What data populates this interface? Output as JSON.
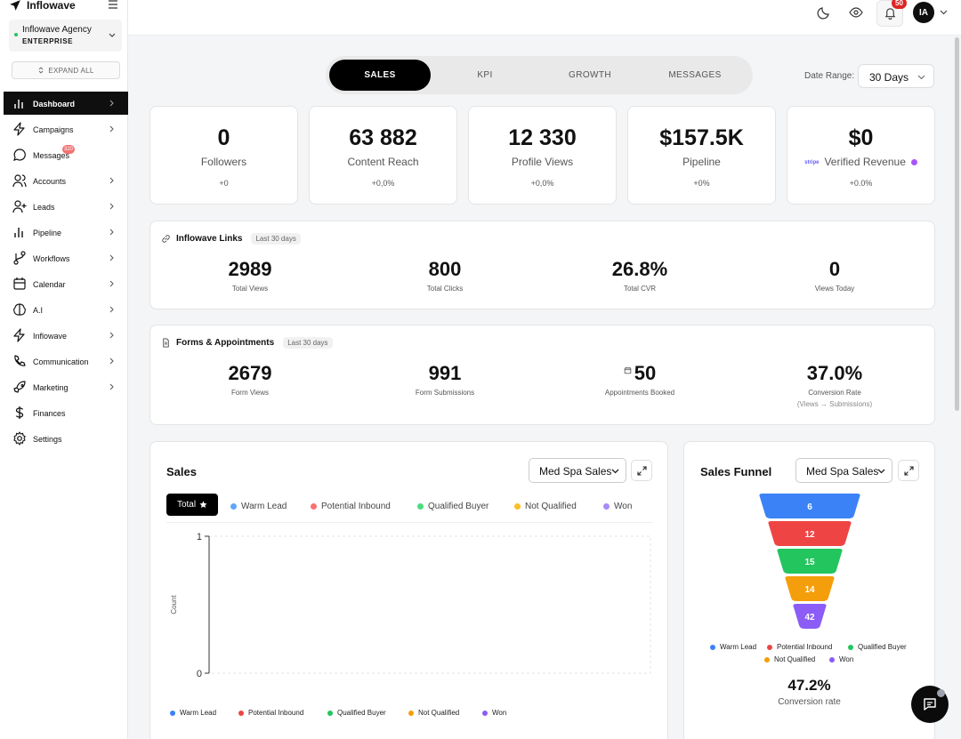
{
  "app": {
    "brand": "Inflowave"
  },
  "agency": {
    "name": "Inflowave Agency",
    "tier": "ENTERPRISE"
  },
  "sidebar": {
    "expand_all": "EXPAND ALL",
    "items": [
      {
        "label": "Dashboard",
        "icon": "bar-chart-icon",
        "active": true
      },
      {
        "label": "Campaigns",
        "icon": "lightning-icon"
      },
      {
        "label": "Messages",
        "icon": "message-circle-icon",
        "badge": "320"
      },
      {
        "label": "Accounts",
        "icon": "users-icon"
      },
      {
        "label": "Leads",
        "icon": "user-plus-icon"
      },
      {
        "label": "Pipeline",
        "icon": "bar-chart-icon"
      },
      {
        "label": "Workflows",
        "icon": "git-branch-icon"
      },
      {
        "label": "Calendar",
        "icon": "calendar-icon"
      },
      {
        "label": "A.I",
        "icon": "brain-icon"
      },
      {
        "label": "Inflowave",
        "icon": "lightning-icon"
      },
      {
        "label": "Communication",
        "icon": "phone-icon"
      },
      {
        "label": "Marketing",
        "icon": "rocket-icon"
      },
      {
        "label": "Finances",
        "icon": "dollar-icon"
      },
      {
        "label": "Settings",
        "icon": "gear-icon"
      }
    ]
  },
  "topbar": {
    "notifications": "50",
    "avatar_initials": "IA"
  },
  "tabs": [
    "SALES",
    "KPI",
    "GROWTH",
    "MESSAGES"
  ],
  "date_range": {
    "label": "Date Range:",
    "value": "30 Days"
  },
  "kpis": [
    {
      "value": "0",
      "label": "Followers",
      "change": "+0"
    },
    {
      "value": "63 882",
      "label": "Content Reach",
      "change": "+0,0%"
    },
    {
      "value": "12 330",
      "label": "Profile Views",
      "change": "+0,0%"
    },
    {
      "value": "$157.5K",
      "label": "Pipeline",
      "change": "+0%"
    },
    {
      "value": "$0",
      "label": "Verified Revenue",
      "change": "+0.0%",
      "tag": "stripe"
    }
  ],
  "links": {
    "title": "Inflowave Links",
    "period": "Last 30 days",
    "stats": [
      {
        "value": "2989",
        "label": "Total Views"
      },
      {
        "value": "800",
        "label": "Total Clicks"
      },
      {
        "value": "26.8%",
        "label": "Total CVR"
      },
      {
        "value": "0",
        "label": "Views Today"
      }
    ]
  },
  "forms": {
    "title": "Forms & Appointments",
    "period": "Last 30 days",
    "stats": [
      {
        "value": "2679",
        "label": "Form Views"
      },
      {
        "value": "991",
        "label": "Form Submissions"
      },
      {
        "value": "50",
        "label": "Appointments Booked"
      },
      {
        "value": "37.0%",
        "label": "Conversion Rate",
        "sub": "(Views → Submissions)"
      }
    ]
  },
  "sales": {
    "title": "Sales",
    "select": "Med Spa Sales",
    "total_label": "Total",
    "legend": [
      "Warm Lead",
      "Potential Inbound",
      "Qualified Buyer",
      "Not Qualified",
      "Won"
    ],
    "colors": [
      "#60a5fa",
      "#f87171",
      "#4ade80",
      "#fbbf24",
      "#a78bfa"
    ]
  },
  "funnel": {
    "title": "Sales Funnel",
    "select": "Med Spa Sales",
    "conversion": "47.2%",
    "conversion_label": "Conversion rate",
    "colors": [
      "#3b82f6",
      "#ef4444",
      "#22c55e",
      "#f59e0b",
      "#8b5cf6"
    ]
  },
  "chart_data": [
    {
      "type": "line",
      "title": "Sales",
      "xlabel": "",
      "ylabel": "Count",
      "ylim": [
        0,
        1
      ],
      "yticks": [
        "0",
        "1"
      ],
      "grid": true,
      "legend_position": "bottom",
      "series": [
        {
          "name": "Warm Lead",
          "values": []
        },
        {
          "name": "Potential Inbound",
          "values": []
        },
        {
          "name": "Qualified Buyer",
          "values": []
        },
        {
          "name": "Not Qualified",
          "values": []
        },
        {
          "name": "Won",
          "values": []
        }
      ]
    },
    {
      "type": "bar",
      "title": "Sales Funnel",
      "categories": [
        "Warm Lead",
        "Potential Inbound",
        "Qualified Buyer",
        "Not Qualified",
        "Won"
      ],
      "values": [
        6,
        12,
        15,
        14,
        42
      ],
      "labels": [
        "6",
        "12",
        "15",
        "14",
        "42"
      ],
      "legend_position": "bottom"
    }
  ]
}
